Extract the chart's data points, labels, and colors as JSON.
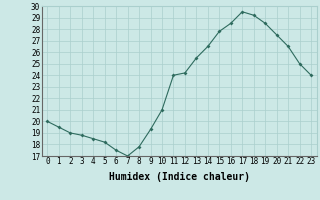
{
  "xlabel": "Humidex (Indice chaleur)",
  "x": [
    0,
    1,
    2,
    3,
    4,
    5,
    6,
    7,
    8,
    9,
    10,
    11,
    12,
    13,
    14,
    15,
    16,
    17,
    18,
    19,
    20,
    21,
    22,
    23
  ],
  "y_values": [
    20,
    19.5,
    19,
    18.8,
    18.5,
    18.2,
    17.5,
    17,
    17.8,
    19.3,
    21,
    24,
    24.2,
    25.5,
    26.5,
    27.8,
    28.5,
    29.5,
    29.2,
    28.5,
    27.5,
    26.5,
    25,
    24
  ],
  "line_color": "#2e6b5e",
  "bg_color": "#cce8e6",
  "grid_color": "#aacfcd",
  "ylim": [
    17,
    30
  ],
  "yticks": [
    17,
    18,
    19,
    20,
    21,
    22,
    23,
    24,
    25,
    26,
    27,
    28,
    29,
    30
  ],
  "xticks": [
    0,
    1,
    2,
    3,
    4,
    5,
    6,
    7,
    8,
    9,
    10,
    11,
    12,
    13,
    14,
    15,
    16,
    17,
    18,
    19,
    20,
    21,
    22,
    23
  ],
  "tick_fontsize": 5.5,
  "xlabel_fontsize": 7.0,
  "title_fontsize": 6.5
}
